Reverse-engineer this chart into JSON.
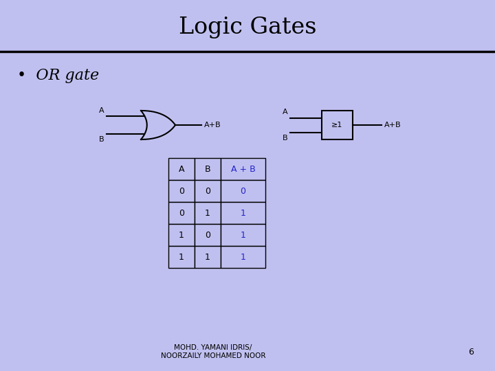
{
  "bg_color": "#c0c0f0",
  "title": "Logic Gates",
  "title_fontsize": 24,
  "title_font": "serif",
  "bullet_text": "OR gate",
  "bullet_fontsize": 16,
  "bullet_font": "serif",
  "table_header": [
    "A",
    "B",
    "A + B"
  ],
  "table_rows": [
    [
      "0",
      "0",
      "0"
    ],
    [
      "0",
      "1",
      "1"
    ],
    [
      "1",
      "0",
      "1"
    ],
    [
      "1",
      "1",
      "1"
    ]
  ],
  "table_header_color": "#000000",
  "table_data_col12_color": "#000000",
  "table_data_col3_color": "#2222cc",
  "footer_text": "MOHD. YAMANI IDRIS/\nNOORZAILY MOHAMED NOOR",
  "page_num": "6",
  "gate_color": "#000000",
  "box_line_color": "#000000",
  "separator_color": "#000000"
}
